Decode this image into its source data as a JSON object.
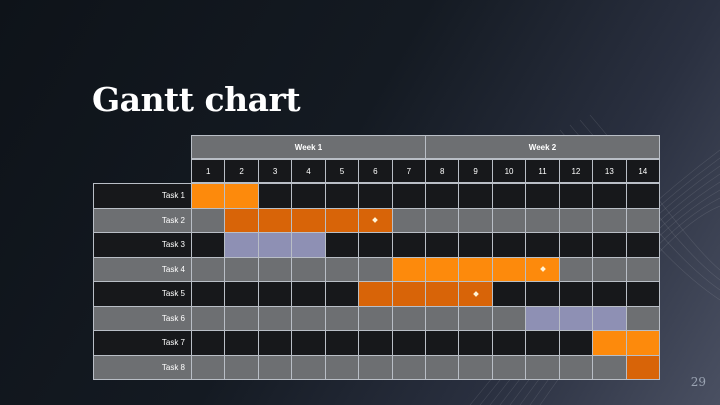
{
  "title": "Gantt chart",
  "page_number": "29",
  "colors": {
    "row_dark": "#17181b",
    "row_light": "#6d6f72",
    "grid_line": "#b9bec6",
    "bar_orange": "#fd8a0c",
    "bar_dark_orange": "#d86408",
    "bar_lavender": "#8e90b4",
    "milestone": "#fff3d6"
  },
  "chart_data": {
    "type": "gantt",
    "weeks": [
      {
        "label": "Week 1",
        "days": [
          1,
          7
        ]
      },
      {
        "label": "Week 2",
        "days": [
          8,
          14
        ]
      }
    ],
    "days": [
      "1",
      "2",
      "3",
      "4",
      "5",
      "6",
      "7",
      "8",
      "9",
      "10",
      "11",
      "12",
      "13",
      "14"
    ],
    "tasks": [
      {
        "label": "Task 1",
        "start": 1,
        "end": 2,
        "color": "orange",
        "milestone": null
      },
      {
        "label": "Task 2",
        "start": 2,
        "end": 6,
        "color": "dark_orange",
        "milestone": 6
      },
      {
        "label": "Task 3",
        "start": 2,
        "end": 4,
        "color": "lavender",
        "milestone": null
      },
      {
        "label": "Task 4",
        "start": 7,
        "end": 11,
        "color": "orange",
        "milestone": 11
      },
      {
        "label": "Task 5",
        "start": 6,
        "end": 9,
        "color": "dark_orange",
        "milestone": 9
      },
      {
        "label": "Task 6",
        "start": 11,
        "end": 13,
        "color": "lavender",
        "milestone": null
      },
      {
        "label": "Task 7",
        "start": 13,
        "end": 14,
        "color": "orange",
        "milestone": null
      },
      {
        "label": "Task 8",
        "start": 14,
        "end": 14,
        "color": "dark_orange",
        "milestone": null
      }
    ]
  }
}
